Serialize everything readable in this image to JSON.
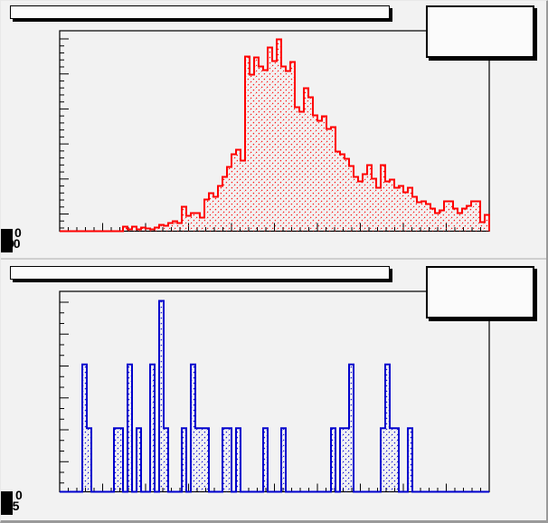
{
  "canvas": {
    "background": "#f2f2f2",
    "border_color": "#9a9a9a",
    "pad_divider_color": "#cfcfcf"
  },
  "panels": [
    {
      "name": "top-pad",
      "title_pave_text": "",
      "stats_pave_text": "",
      "overlap_labels": [
        "0",
        "00"
      ],
      "frame_color": "#000000",
      "pave_fill": "#fbfbfb"
    },
    {
      "name": "bottom-pad",
      "title_pave_text": "",
      "stats_pave_text": "",
      "overlap_labels": [
        "0",
        "1.5"
      ],
      "frame_color": "#000000",
      "pave_fill": "#fbfbfb"
    }
  ],
  "chart_data": [
    {
      "type": "bar",
      "subtype": "step-histogram-hatched",
      "title": "",
      "xlabel": "",
      "ylabel": "",
      "legend": null,
      "axis_tick_labels_visible": false,
      "grid": false,
      "n_bins": 95,
      "series": [
        {
          "name": "red-histogram",
          "line_color": "#ff0000",
          "fill": "diagonal-hatch"
        }
      ],
      "values_unit": "arbitrary (axis labels not legible; values are relative heights, max 212)",
      "ylim": [
        0,
        220
      ],
      "values": [
        0,
        0,
        0,
        0,
        0,
        0,
        0,
        0,
        0,
        0,
        0,
        0,
        0,
        0,
        5,
        2,
        5,
        2,
        4,
        3,
        2,
        4,
        7,
        6,
        9,
        11,
        9,
        27,
        17,
        20,
        20,
        15,
        35,
        42,
        38,
        50,
        60,
        71,
        85,
        90,
        78,
        193,
        173,
        192,
        182,
        178,
        203,
        188,
        212,
        182,
        177,
        187,
        137,
        132,
        158,
        148,
        128,
        122,
        127,
        113,
        115,
        88,
        85,
        80,
        72,
        60,
        55,
        63,
        73,
        58,
        48,
        73,
        55,
        57,
        48,
        50,
        43,
        48,
        38,
        32,
        33,
        30,
        25,
        20,
        23,
        33,
        33,
        25,
        20,
        25,
        28,
        33,
        33,
        10,
        18
      ]
    },
    {
      "type": "bar",
      "subtype": "step-histogram-hatched",
      "title": "",
      "xlabel": "",
      "ylabel": "",
      "legend": null,
      "axis_tick_labels_visible": false,
      "grid": false,
      "n_bins": 95,
      "series": [
        {
          "name": "blue-histogram",
          "line_color": "#0000cd",
          "fill": "diagonal-hatch"
        }
      ],
      "values_unit": "counts",
      "ylim": [
        0,
        3.15
      ],
      "values": [
        0,
        0,
        0,
        0,
        0,
        2,
        1,
        0,
        0,
        0,
        0,
        0,
        1,
        1,
        0,
        2,
        0,
        1,
        0,
        0,
        2,
        0,
        3,
        1,
        0,
        0,
        0,
        1,
        0,
        2,
        1,
        1,
        1,
        0,
        0,
        0,
        1,
        1,
        0,
        1,
        0,
        0,
        0,
        0,
        0,
        1,
        0,
        0,
        0,
        1,
        0,
        0,
        0,
        0,
        0,
        0,
        0,
        0,
        0,
        0,
        1,
        0,
        1,
        1,
        2,
        0,
        0,
        0,
        0,
        0,
        0,
        1,
        2,
        1,
        1,
        0,
        0,
        1,
        0,
        0,
        0,
        0,
        0,
        0,
        0,
        0,
        0,
        0,
        0,
        0,
        0,
        0,
        0,
        0,
        0
      ]
    }
  ]
}
